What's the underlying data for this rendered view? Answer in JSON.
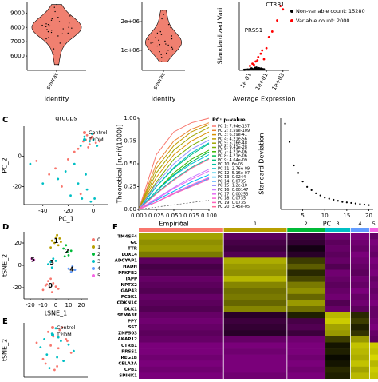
{
  "panel_labels": [
    "C",
    "D",
    "E",
    "F"
  ],
  "chart_data": [
    {
      "type": "violin",
      "categories": [
        "seurat"
      ],
      "xlabel": "Identity",
      "color": "#F08070",
      "ylim": [
        5000,
        9800
      ],
      "yticks": [
        6000,
        7000,
        8000,
        9000
      ],
      "values": [
        7800,
        8100,
        7600,
        8300,
        7900,
        8500,
        7200,
        8800,
        6900,
        8000,
        7700,
        8200,
        7400,
        8600,
        9100,
        6500,
        7950,
        8050,
        7850,
        8400,
        6100,
        9400,
        7300,
        8150,
        7650,
        5400,
        8700,
        7550,
        8250,
        9600
      ]
    },
    {
      "type": "violin",
      "categories": [
        "seurat"
      ],
      "xlabel": "Identity",
      "color": "#F08070",
      "ylim": [
        300000,
        2700000
      ],
      "yticks": [
        {
          "value": 1000000,
          "label": "1e+06"
        },
        {
          "value": 2000000,
          "label": "2e+06"
        }
      ],
      "values": [
        1200000,
        1350000,
        1100000,
        1500000,
        900000,
        1650000,
        1250000,
        1800000,
        1000000,
        1400000,
        1150000,
        2100000,
        1300000,
        750000,
        1550000,
        1450000,
        1050000,
        1700000,
        2400000,
        1220000,
        1380000,
        950000,
        1600000,
        1280000,
        850000,
        1900000,
        1320000,
        1180000,
        600000,
        2250000
      ]
    },
    {
      "type": "scatter",
      "xlabel": "Average Expression",
      "ylabel": "Standardized Vari",
      "log_x": true,
      "xlim": [
        0.005,
        5000
      ],
      "xticks": [
        {
          "value": 0.1,
          "label": "1e-01"
        },
        {
          "value": 10,
          "label": "1e+01"
        },
        {
          "value": 1000,
          "label": "1e+03"
        }
      ],
      "ylim": [
        0,
        62
      ],
      "annotations": [
        "CTRB1",
        "PRSS1"
      ],
      "series": [
        {
          "name": "Non-variable count: 15280",
          "color": "#000000",
          "x": [
            0.02,
            0.05,
            0.1,
            0.2,
            0.3,
            0.5,
            0.8,
            1,
            1.5,
            2,
            3,
            5,
            0.07,
            0.15,
            0.4,
            0.6,
            1.2,
            2.5,
            4,
            0.03
          ],
          "values": [
            0.5,
            0.8,
            1,
            1.2,
            0.9,
            1.5,
            1.3,
            1.1,
            1.6,
            1.4,
            1.2,
            1.0,
            0.7,
            1.8,
            2.2,
            2.5,
            2.0,
            1.7,
            0.9,
            0.6
          ]
        },
        {
          "name": "Variable count: 2000",
          "color": "#FF0000",
          "x": [
            0.1,
            0.2,
            0.5,
            1,
            2,
            5,
            10,
            20,
            0.3,
            0.8,
            3,
            50,
            200,
            1000,
            500
          ],
          "values": [
            4,
            6,
            8,
            12,
            15,
            10,
            20,
            30,
            5,
            9,
            18,
            35,
            45,
            55,
            58
          ]
        }
      ]
    },
    {
      "type": "scatter",
      "title": "groups",
      "xlabel": "PC_1",
      "ylabel": "PC_2",
      "xlim": [
        -55,
        12
      ],
      "xticks": [
        -40,
        -20,
        0
      ],
      "ylim": [
        -32,
        20
      ],
      "yticks": [
        -20,
        0
      ],
      "series": [
        {
          "name": "Control",
          "color": "#F8766D",
          "x": [
            -2,
            -5,
            -8,
            -3,
            0,
            -12,
            -20,
            -30,
            -45,
            -1,
            -6,
            -15,
            2,
            -4,
            -25,
            -10,
            5,
            -35
          ],
          "values": [
            12,
            14,
            10,
            8,
            15,
            5,
            -2,
            -8,
            -3,
            13,
            11,
            3,
            9,
            6,
            -20,
            -25,
            10,
            -12
          ]
        },
        {
          "name": "T2DM",
          "color": "#00BFC4",
          "x": [
            -3,
            -7,
            -1,
            -10,
            -15,
            -22,
            -28,
            -40,
            -50,
            0,
            3,
            -5,
            -9,
            -18,
            -12,
            -6,
            1,
            -2
          ],
          "values": [
            10,
            13,
            15,
            7,
            -5,
            -10,
            -15,
            -18,
            -5,
            11,
            7,
            -22,
            -28,
            -26,
            -18,
            -12,
            -28,
            -30
          ]
        }
      ]
    },
    {
      "type": "line",
      "xlabel": "Empirical",
      "ylabel": "Theoretical [runif(1000)]",
      "legend_title": "PC: p-value",
      "xlim": [
        0,
        0.1
      ],
      "xticks": [
        {
          "value": 0,
          "label": "0.000"
        },
        0.025,
        {
          "value": 0.05,
          "label": "0.050"
        },
        0.075,
        {
          "value": 0.1,
          "label": "0.100"
        }
      ],
      "ylim": [
        0,
        1
      ],
      "yticks": [
        {
          "value": 0,
          "label": "0.00"
        },
        0.25,
        {
          "value": 0.5,
          "label": "0.50"
        },
        0.75,
        {
          "value": 1,
          "label": "1.00"
        }
      ],
      "x": [
        0,
        0.025,
        0.05,
        0.075,
        0.1
      ],
      "series": [
        {
          "name": "PC 1: 7.94e-157",
          "color": "#F8766D",
          "values": [
            0,
            0.6,
            0.85,
            0.95,
            1
          ]
        },
        {
          "name": "PC 2: 2.59e-109",
          "color": "#EA8331",
          "values": [
            0,
            0.5,
            0.75,
            0.88,
            0.95
          ]
        },
        {
          "name": "PC 3: 6.29e-41",
          "color": "#D89000",
          "values": [
            0,
            0.35,
            0.6,
            0.75,
            0.85
          ]
        },
        {
          "name": "PC 4: 4.21e-56",
          "color": "#C09B00",
          "values": [
            0,
            0.45,
            0.7,
            0.85,
            0.93
          ]
        },
        {
          "name": "PC 5: 5.16e-48",
          "color": "#A3A500",
          "values": [
            0,
            0.4,
            0.65,
            0.8,
            0.9
          ]
        },
        {
          "name": "PC 6: 9.41e-28",
          "color": "#7CAE00",
          "values": [
            0,
            0.3,
            0.55,
            0.7,
            0.8
          ]
        },
        {
          "name": "PC 7: 4.21e-06",
          "color": "#39B600",
          "values": [
            0,
            0.2,
            0.4,
            0.55,
            0.65
          ]
        },
        {
          "name": "PC 8: 4.21e-06",
          "color": "#00BB4E",
          "values": [
            0,
            0.2,
            0.38,
            0.52,
            0.63
          ]
        },
        {
          "name": "PC 9: 4.64e-09",
          "color": "#00BF7D",
          "values": [
            0,
            0.25,
            0.45,
            0.6,
            0.72
          ]
        },
        {
          "name": "PC 10: 6e-05",
          "color": "#00C1A3",
          "values": [
            0,
            0.18,
            0.33,
            0.46,
            0.56
          ]
        },
        {
          "name": "PC 11: 2.76e-09",
          "color": "#00BFC4",
          "values": [
            0,
            0.25,
            0.46,
            0.62,
            0.73
          ]
        },
        {
          "name": "PC 12: 5.16e-07",
          "color": "#00BAE0",
          "values": [
            0,
            0.2,
            0.37,
            0.5,
            0.6
          ]
        },
        {
          "name": "PC 13: 0.0244",
          "color": "#00B0F6",
          "values": [
            0,
            0.1,
            0.2,
            0.3,
            0.38
          ]
        },
        {
          "name": "PC 14: 0.0735",
          "color": "#35A2FF",
          "values": [
            0,
            0.08,
            0.17,
            0.26,
            0.34
          ]
        },
        {
          "name": "PC 15: 1.2e-10",
          "color": "#9590FF",
          "values": [
            0,
            0.28,
            0.5,
            0.66,
            0.76
          ]
        },
        {
          "name": "PC 16: 0.00147",
          "color": "#C77CFF",
          "values": [
            0,
            0.12,
            0.24,
            0.35,
            0.44
          ]
        },
        {
          "name": "PC 17: 0.00253",
          "color": "#E76BF3",
          "values": [
            0,
            0.11,
            0.23,
            0.33,
            0.42
          ]
        },
        {
          "name": "PC 18: 0.0735",
          "color": "#FA62DB",
          "values": [
            0,
            0.08,
            0.18,
            0.27,
            0.35
          ]
        },
        {
          "name": "PC 19: 0.0735",
          "color": "#FF62BC",
          "values": [
            0,
            0.08,
            0.17,
            0.25,
            0.33
          ]
        },
        {
          "name": "PC 20: 3.45e-05",
          "color": "#FF6A98",
          "values": [
            0,
            0.17,
            0.32,
            0.45,
            0.55
          ]
        }
      ]
    },
    {
      "type": "scatter",
      "xlabel": "PC",
      "ylabel": "Standard Deviation",
      "color": "#000000",
      "xlim": [
        0,
        21
      ],
      "xticks": [
        5,
        10,
        15,
        20
      ],
      "ylim": [
        1.5,
        10
      ],
      "x": [
        1,
        2,
        3,
        4,
        5,
        6,
        7,
        8,
        9,
        10,
        11,
        12,
        13,
        14,
        15,
        16,
        17,
        18,
        19,
        20
      ],
      "values": [
        9.5,
        7.8,
        5.6,
        4.9,
        4.1,
        3.6,
        3.3,
        3.0,
        2.8,
        2.6,
        2.5,
        2.4,
        2.3,
        2.2,
        2.15,
        2.1,
        2.05,
        2.0,
        1.95,
        1.9
      ]
    },
    {
      "type": "scatter",
      "xlabel": "tSNE_1",
      "ylabel": "tSNE_2",
      "xlim": [
        -25,
        25
      ],
      "xticks": [
        -20,
        -10,
        0,
        10,
        20
      ],
      "ylim": [
        -30,
        30
      ],
      "yticks": [
        -20,
        0,
        20
      ],
      "series": [
        {
          "name": "0",
          "color": "#F8766D",
          "x": [
            -8,
            -5,
            -2,
            0,
            -6,
            -10,
            -3,
            2,
            -7,
            -4
          ],
          "values": [
            -18,
            -20,
            -16,
            -19,
            -14,
            -22,
            -24,
            -21,
            -17,
            -12
          ]
        },
        {
          "name": "1",
          "color": "#B79F00",
          "x": [
            -3,
            0,
            2,
            -1,
            3,
            -4,
            1,
            4
          ],
          "values": [
            22,
            25,
            18,
            20,
            24,
            16,
            27,
            21
          ]
        },
        {
          "name": "2",
          "color": "#00BA38",
          "x": [
            6,
            9,
            10,
            8,
            12,
            7
          ],
          "values": [
            15,
            12,
            9,
            18,
            13,
            8
          ]
        },
        {
          "name": "3",
          "color": "#00BFC4",
          "x": [
            -4,
            -2,
            -6,
            0,
            -3
          ],
          "values": [
            3,
            6,
            1,
            4,
            -2
          ]
        },
        {
          "name": "4",
          "color": "#619CFF",
          "x": [
            10,
            13,
            12,
            15
          ],
          "values": [
            -3,
            -1,
            -6,
            -4
          ]
        },
        {
          "name": "5",
          "color": "#F564E3",
          "x": [
            -19,
            -18,
            -17
          ],
          "values": [
            6,
            4,
            5
          ]
        }
      ]
    },
    {
      "type": "heatmap",
      "categories": [
        "0",
        "1",
        "2",
        "3",
        "4",
        "5"
      ],
      "cluster_colors": [
        "#F8766D",
        "#B79F00",
        "#00BA38",
        "#00BFC4",
        "#619CFF",
        "#F564E3"
      ],
      "sizes": [
        400,
        300,
        180,
        120,
        90,
        40
      ],
      "colors": {
        "low": "#FF00FF",
        "mid": "#000000",
        "high": "#FFFF00"
      },
      "clim": [
        -2.5,
        2.5
      ],
      "genes": [
        "TM4SF4",
        "GC",
        "TTR",
        "LOXL4",
        "ADCYAP1",
        "HADH",
        "PFKFB2",
        "IAPP",
        "NPTX2",
        "GAP43",
        "PCSK1",
        "CDKN1C",
        "DLK1",
        "SEMA3E",
        "PPY",
        "SST",
        "ZNF503",
        "AKAP12",
        "CTRB1",
        "PRSS1",
        "REG1B",
        "CELA3A",
        "CPB1",
        "SPINK1"
      ],
      "values": [
        [
          1.6,
          -0.9,
          -0.6,
          -1.1,
          -1.2,
          -1.0
        ],
        [
          1.4,
          -0.7,
          -0.5,
          -0.9,
          -1.1,
          -1.2
        ],
        [
          1.5,
          -0.6,
          -0.2,
          -1.0,
          -1.0,
          -1.1
        ],
        [
          1.2,
          -0.8,
          -0.4,
          -0.9,
          -1.2,
          -1.0
        ],
        [
          -0.9,
          1.7,
          0.6,
          -1.0,
          -1.1,
          -1.2
        ],
        [
          -0.7,
          1.5,
          0.9,
          -0.8,
          -1.0,
          -1.1
        ],
        [
          -0.8,
          1.4,
          0.4,
          -1.1,
          -0.9,
          -1.2
        ],
        [
          -1.0,
          1.8,
          0.7,
          -1.0,
          -1.1,
          -1.0
        ],
        [
          -0.9,
          1.3,
          1.2,
          -0.9,
          -1.0,
          -1.1
        ],
        [
          -0.8,
          1.1,
          1.4,
          -1.0,
          -1.2,
          -1.0
        ],
        [
          -1.0,
          1.2,
          1.0,
          -1.1,
          -1.0,
          -1.1
        ],
        [
          -0.9,
          1.0,
          1.5,
          -0.8,
          -1.1,
          -1.2
        ],
        [
          -0.8,
          1.3,
          1.1,
          -1.0,
          -0.9,
          -1.0
        ],
        [
          -1.0,
          -0.4,
          0.3,
          1.8,
          0.4,
          -1.0
        ],
        [
          -1.1,
          -0.6,
          -0.7,
          2.0,
          0.6,
          -1.1
        ],
        [
          -1.0,
          -0.5,
          -0.8,
          1.6,
          0.3,
          -1.2
        ],
        [
          -0.9,
          -0.4,
          -0.6,
          1.5,
          0.5,
          -1.0
        ],
        [
          -1.0,
          -1.0,
          -1.1,
          0.6,
          1.5,
          -0.9
        ],
        [
          -1.2,
          -1.2,
          -1.2,
          0.2,
          1.9,
          2.0
        ],
        [
          -1.2,
          -1.1,
          -1.2,
          0.3,
          1.8,
          1.9
        ],
        [
          -1.1,
          -1.2,
          -1.1,
          0.1,
          1.7,
          2.1
        ],
        [
          -1.2,
          -1.2,
          -1.2,
          0.2,
          1.9,
          1.8
        ],
        [
          -1.1,
          -1.2,
          -1.1,
          0.4,
          1.6,
          2.0
        ],
        [
          -1.2,
          -1.1,
          -1.2,
          0.3,
          1.8,
          1.9
        ]
      ]
    },
    {
      "type": "scatter",
      "ylabel": "tSNE_2",
      "xlim": [
        -25,
        25
      ],
      "ylim": [
        -30,
        30
      ],
      "series": [
        {
          "name": "Control",
          "color": "#F8766D",
          "x": [
            -6,
            -2,
            3,
            -10,
            8,
            1,
            -4,
            12,
            -15,
            5,
            -1,
            9,
            -8,
            2
          ],
          "values": [
            20,
            15,
            22,
            -10,
            12,
            -18,
            5,
            -3,
            8,
            25,
            -22,
            10,
            -15,
            2
          ]
        },
        {
          "name": "T2DM",
          "color": "#00BFC4",
          "x": [
            -3,
            4,
            -7,
            0,
            10,
            -12,
            6,
            -5,
            2,
            14,
            -9,
            1
          ],
          "values": [
            18,
            10,
            -5,
            24,
            6,
            3,
            -12,
            -20,
            14,
            -1,
            12,
            -8
          ]
        }
      ]
    }
  ]
}
